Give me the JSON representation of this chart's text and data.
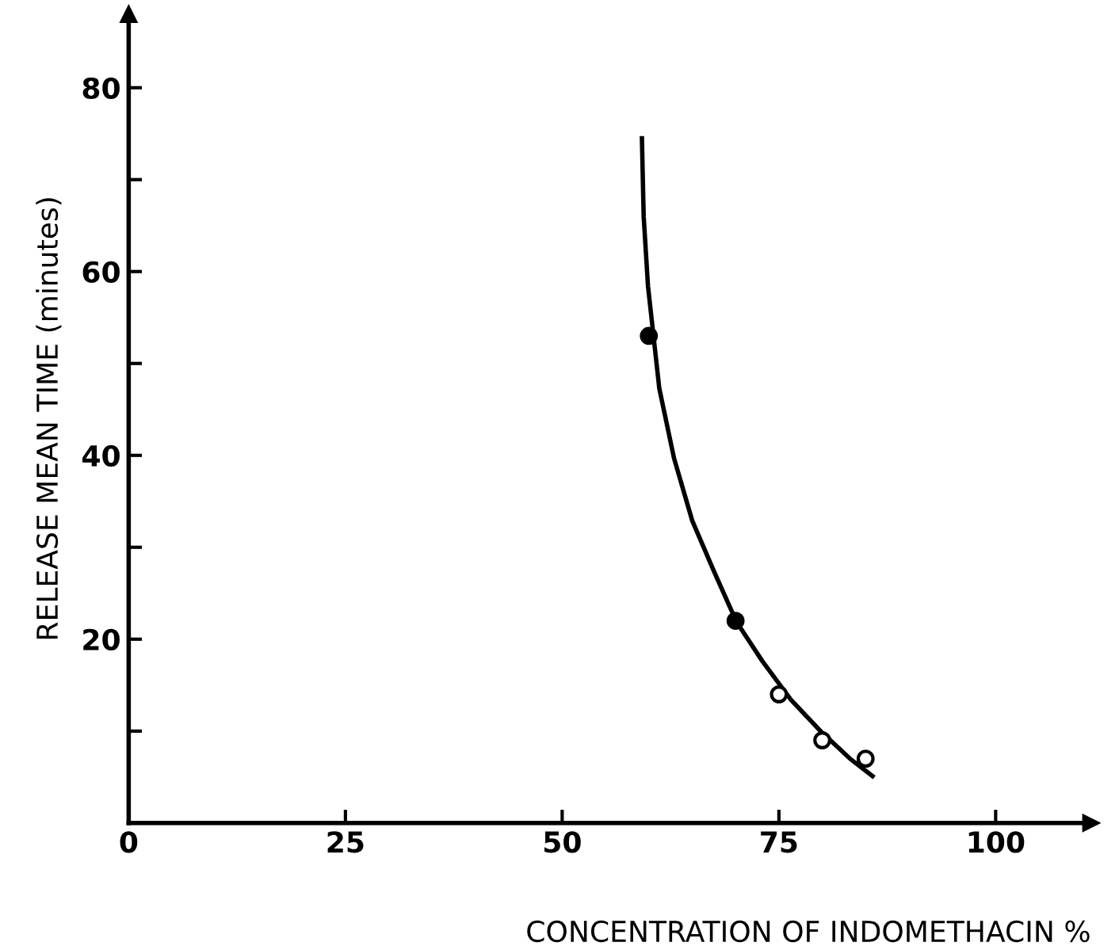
{
  "chart_data": {
    "type": "scatter",
    "xlabel": "CONCENTRATION OF INDOMETHACIN %",
    "ylabel": "RELEASE MEAN TIME (minutes)",
    "xlim": [
      0,
      111
    ],
    "ylim": [
      0,
      88
    ],
    "xticks": [
      0,
      25,
      50,
      75,
      100
    ],
    "yticks": [
      {
        "value": 10,
        "label": null
      },
      20,
      {
        "value": 30,
        "label": null
      },
      40,
      {
        "value": 50,
        "label": null
      },
      60,
      {
        "value": 70,
        "label": null
      },
      80
    ],
    "grid": false,
    "legend": false,
    "series": [
      {
        "type": "line",
        "color": "#000000",
        "marker": "none",
        "line_style": "solid",
        "x": [
          59.2,
          59.4,
          59.9,
          61.2,
          62.9,
          65.0,
          67.5,
          70.1,
          73.1,
          76.4,
          79.8,
          83.2,
          85.8
        ],
        "values": [
          74.5,
          66,
          58.4,
          47.3,
          39.7,
          32.9,
          27.4,
          21.9,
          17.6,
          13.4,
          10.0,
          7.0,
          5.1
        ]
      },
      {
        "color": "#000000",
        "colors": [
          "#000000",
          "#000000",
          "#ffffff",
          "#ffffff",
          "#ffffff"
        ],
        "marker": "circle",
        "x": [
          60,
          70,
          75,
          80,
          85
        ],
        "values": [
          53,
          22,
          14,
          9,
          7
        ]
      }
    ]
  }
}
